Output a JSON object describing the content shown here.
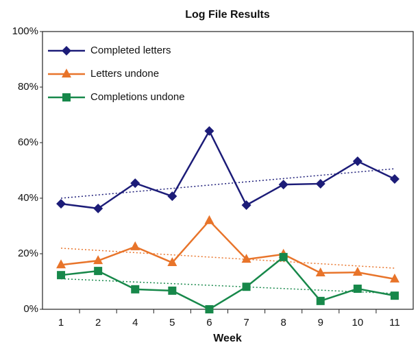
{
  "chart_data": {
    "type": "line",
    "title": "Log File Results",
    "x_label": "Week",
    "categories": [
      "1",
      "2",
      "4",
      "5",
      "6",
      "7",
      "8",
      "9",
      "10",
      "11"
    ],
    "series": [
      {
        "name": "Completed letters",
        "color": "#1c1c78",
        "marker": "diamond",
        "values": [
          38,
          36.3,
          45.4,
          40.7,
          64.2,
          37.5,
          44.9,
          45.2,
          53.3,
          46.9
        ],
        "trendline": [
          40,
          50.6
        ]
      },
      {
        "name": "Letters undone",
        "color": "#e8742a",
        "marker": "triangle",
        "values": [
          16,
          17.5,
          22.5,
          16.8,
          31.9,
          18,
          19.8,
          13.1,
          13.3,
          10.9
        ],
        "trendline": [
          22,
          14.8
        ]
      },
      {
        "name": "Completions undone",
        "color": "#17884a",
        "marker": "square",
        "values": [
          12.3,
          13.8,
          7.2,
          6.7,
          0,
          8.1,
          18.8,
          3,
          7.4,
          4.9
        ],
        "trendline": [
          11,
          5.7
        ]
      }
    ],
    "ylim": [
      0,
      100
    ],
    "yticks": [
      {
        "value": 0,
        "label": "0%"
      },
      {
        "value": 20,
        "label": "20%"
      },
      {
        "value": 40,
        "label": "40%"
      },
      {
        "value": 60,
        "label": "60%"
      },
      {
        "value": 80,
        "label": "80%"
      },
      {
        "value": 100,
        "label": "100%"
      }
    ],
    "legend": "upper left"
  }
}
